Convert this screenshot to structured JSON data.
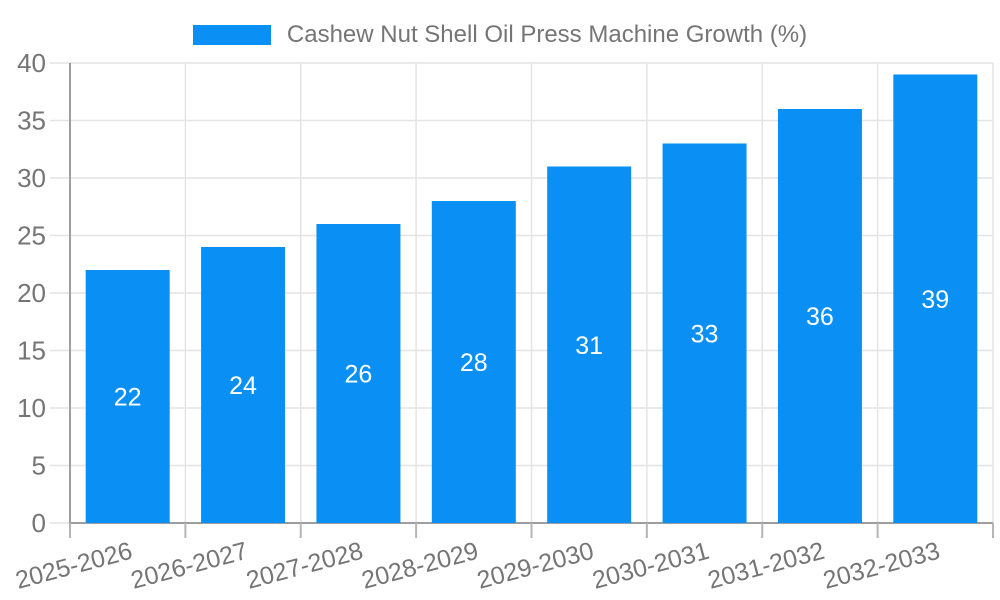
{
  "legend": {
    "label": "Cashew Nut Shell Oil Press Machine Growth (%)"
  },
  "chart_data": {
    "type": "bar",
    "title": "",
    "categories": [
      "2025-2026",
      "2026-2027",
      "2027-2028",
      "2028-2029",
      "2029-2030",
      "2030-2031",
      "2031-2032",
      "2032-2033"
    ],
    "series": [
      {
        "name": "Cashew Nut Shell Oil Press Machine Growth (%)",
        "values": [
          22,
          24,
          26,
          28,
          31,
          33,
          36,
          39
        ]
      }
    ],
    "xlabel": "",
    "ylabel": "",
    "ylim": [
      0,
      40
    ],
    "ytick_step": 5,
    "ytick_labels": [
      "0",
      "5",
      "10",
      "15",
      "20",
      "25",
      "30",
      "35",
      "40"
    ],
    "grid": true,
    "legend_position": "top",
    "bar_value_labels_inside": true,
    "colors": {
      "bar": "#0A90F4",
      "bar_value_label": "#ffffff",
      "axis_text": "#757575",
      "legend_text": "#757575",
      "grid_line": "#e4e4e4",
      "axis_line": "#9e9e9e",
      "background": "#ffffff"
    }
  }
}
